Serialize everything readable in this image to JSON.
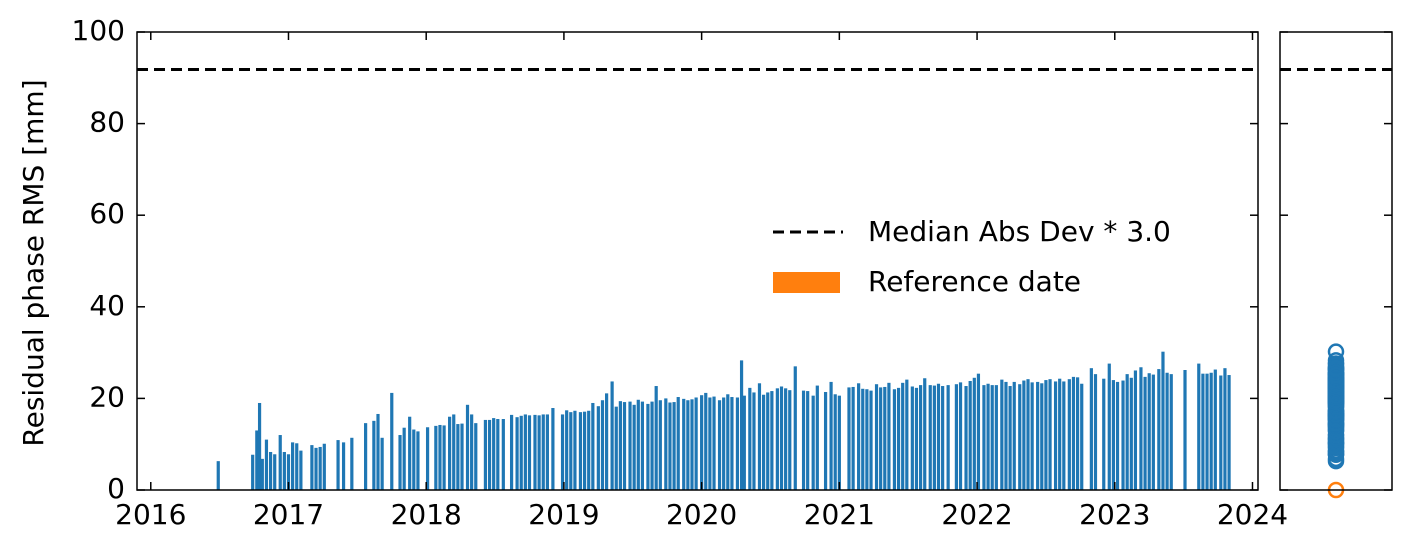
{
  "chart_data": [
    {
      "type": "bar",
      "y_label": "Residual phase RMS [mm]",
      "xlim": [
        2015.9,
        2024.04
      ],
      "xticks": [
        2016,
        2017,
        2018,
        2019,
        2020,
        2021,
        2022,
        2023,
        2024
      ],
      "ylim": [
        0,
        100
      ],
      "yticks": [
        0,
        20,
        40,
        60,
        80,
        100
      ],
      "hline": {
        "name": "Median Abs Dev * 3.0",
        "value": 91.8,
        "color": "#000000"
      },
      "series": [
        {
          "color": "#1f77b4",
          "x": [
            2016.49,
            2016.74,
            2016.77,
            2016.79,
            2016.81,
            2016.84,
            2016.87,
            2016.9,
            2016.94,
            2016.97,
            2017.0,
            2017.03,
            2017.06,
            2017.09,
            2017.17,
            2017.2,
            2017.23,
            2017.26,
            2017.36,
            2017.4,
            2017.46,
            2017.56,
            2017.62,
            2017.65,
            2017.68,
            2017.75,
            2017.81,
            2017.84,
            2017.88,
            2017.91,
            2017.94,
            2018.01,
            2018.07,
            2018.1,
            2018.13,
            2018.17,
            2018.2,
            2018.23,
            2018.26,
            2018.3,
            2018.33,
            2018.36,
            2018.43,
            2018.46,
            2018.49,
            2018.52,
            2018.56,
            2018.62,
            2018.66,
            2018.69,
            2018.72,
            2018.75,
            2018.79,
            2018.82,
            2018.85,
            2018.88,
            2018.92,
            2018.99,
            2019.02,
            2019.05,
            2019.08,
            2019.12,
            2019.15,
            2019.18,
            2019.21,
            2019.25,
            2019.28,
            2019.31,
            2019.35,
            2019.38,
            2019.41,
            2019.44,
            2019.48,
            2019.51,
            2019.54,
            2019.57,
            2019.61,
            2019.64,
            2019.67,
            2019.7,
            2019.74,
            2019.77,
            2019.8,
            2019.83,
            2019.87,
            2019.9,
            2019.93,
            2019.96,
            2020.0,
            2020.03,
            2020.06,
            2020.09,
            2020.13,
            2020.16,
            2020.19,
            2020.22,
            2020.26,
            2020.29,
            2020.31,
            2020.35,
            2020.38,
            2020.42,
            2020.45,
            2020.48,
            2020.51,
            2020.55,
            2020.58,
            2020.61,
            2020.64,
            2020.68,
            2020.74,
            2020.77,
            2020.81,
            2020.84,
            2020.9,
            2020.94,
            2020.97,
            2021.0,
            2021.07,
            2021.1,
            2021.14,
            2021.17,
            2021.2,
            2021.23,
            2021.27,
            2021.3,
            2021.33,
            2021.36,
            2021.4,
            2021.43,
            2021.46,
            2021.49,
            2021.53,
            2021.56,
            2021.59,
            2021.62,
            2021.66,
            2021.69,
            2021.72,
            2021.75,
            2021.79,
            2021.85,
            2021.88,
            2021.92,
            2021.95,
            2021.98,
            2022.01,
            2022.05,
            2022.08,
            2022.11,
            2022.14,
            2022.18,
            2022.21,
            2022.24,
            2022.27,
            2022.31,
            2022.34,
            2022.37,
            2022.4,
            2022.44,
            2022.47,
            2022.5,
            2022.53,
            2022.57,
            2022.6,
            2022.63,
            2022.67,
            2022.7,
            2022.73,
            2022.76,
            2022.83,
            2022.86,
            2022.92,
            2022.96,
            2022.99,
            2023.02,
            2023.06,
            2023.09,
            2023.12,
            2023.15,
            2023.19,
            2023.22,
            2023.25,
            2023.28,
            2023.32,
            2023.35,
            2023.38,
            2023.41,
            2023.51,
            2023.61,
            2023.64,
            2023.67,
            2023.7,
            2023.73,
            2023.77,
            2023.8,
            2023.83
          ],
          "values": [
            6.3,
            7.7,
            13,
            19,
            6.8,
            11,
            8.3,
            7.8,
            12,
            8.3,
            7.8,
            10.4,
            10.2,
            8.6,
            9.8,
            9.2,
            9.4,
            10.1,
            10.9,
            10.4,
            11.4,
            14.6,
            15.1,
            16.6,
            11.4,
            21.2,
            12,
            13.6,
            16,
            13.2,
            12.8,
            13.7,
            14,
            14.2,
            14.1,
            16,
            16.5,
            14.4,
            14.5,
            18.6,
            16.5,
            14.6,
            15.3,
            15.3,
            15.7,
            15.5,
            15.5,
            16.4,
            15.9,
            16.2,
            16.5,
            16.3,
            16.4,
            16.3,
            16.5,
            16.5,
            17.9,
            16.5,
            17.4,
            17,
            17.3,
            17,
            17.1,
            17.3,
            19,
            18.3,
            19.6,
            21.1,
            23.7,
            18.2,
            19.4,
            19.2,
            19.3,
            18.6,
            19.7,
            19.3,
            18.8,
            19.3,
            22.7,
            19.6,
            20,
            19.1,
            19.2,
            20.3,
            19.9,
            19.6,
            19.8,
            20.2,
            20.7,
            21.2,
            20.2,
            20.4,
            19.6,
            20.2,
            20.9,
            20.3,
            20.2,
            28.3,
            20.6,
            22.3,
            21.3,
            23.3,
            20.8,
            21.3,
            21.6,
            22.2,
            22.6,
            22.2,
            21.8,
            27,
            21.7,
            21.6,
            20.6,
            22.8,
            21.4,
            23.6,
            20.9,
            20.6,
            22.4,
            22.5,
            23.3,
            22.1,
            22,
            21.7,
            23.1,
            22.4,
            22.5,
            23.4,
            22,
            22.3,
            23.4,
            24.1,
            22.6,
            22.3,
            22.9,
            24.4,
            22.9,
            22.8,
            23.2,
            22.7,
            22.9,
            23.1,
            23.5,
            22.7,
            23.8,
            24.5,
            25.4,
            22.9,
            23.2,
            22.9,
            22.9,
            24.1,
            23.6,
            22.7,
            23.6,
            23.1,
            23.9,
            24.2,
            23.5,
            23.6,
            23.3,
            24,
            24.2,
            23.7,
            24.3,
            23.7,
            24.2,
            24.7,
            24.6,
            23.2,
            26.6,
            25.3,
            24.3,
            27.6,
            24,
            23.6,
            23.9,
            25.3,
            24.5,
            26.1,
            26.8,
            24.7,
            25.5,
            25.2,
            26.4,
            30.2,
            25.6,
            25.3,
            26.2,
            27.6,
            25.4,
            25.4,
            25.6,
            26.3,
            25,
            26.6,
            25.1
          ]
        },
        {
          "name": "Reference date",
          "color": "#ff7f0e",
          "values": [
            0
          ]
        }
      ]
    },
    {
      "type": "scatter",
      "ylim": [
        0,
        100
      ],
      "yticks": [
        0,
        20,
        40,
        60,
        80,
        100
      ]
    }
  ]
}
